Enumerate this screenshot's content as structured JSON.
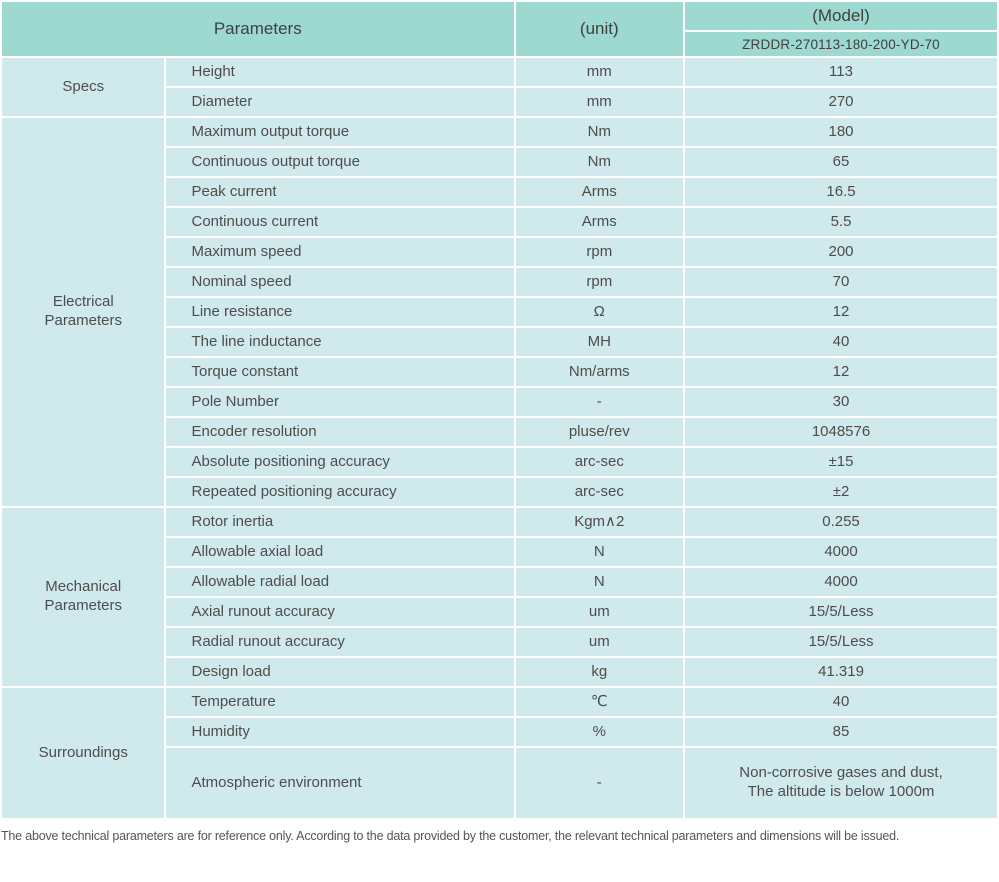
{
  "header": {
    "parameters_label": "Parameters",
    "unit_label": "(unit)",
    "model_label": "(Model)",
    "model_value": "ZRDDR-270113-180-200-YD-70"
  },
  "sections": [
    {
      "group": "Specs",
      "rows": [
        [
          "Height",
          "mm",
          "113"
        ],
        [
          "Diameter",
          "mm",
          "270"
        ]
      ]
    },
    {
      "group": "Electrical\nParameters",
      "rows": [
        [
          "Maximum output torque",
          "Nm",
          "180"
        ],
        [
          "Continuous output torque",
          "Nm",
          "65"
        ],
        [
          "Peak current",
          "Arms",
          "16.5"
        ],
        [
          "Continuous current",
          "Arms",
          "5.5"
        ],
        [
          "Maximum speed",
          "rpm",
          "200"
        ],
        [
          "Nominal speed",
          "rpm",
          "70"
        ],
        [
          "Line resistance",
          "Ω",
          "12"
        ],
        [
          "The line inductance",
          "MH",
          "40"
        ],
        [
          "Torque constant",
          "Nm/arms",
          "12"
        ],
        [
          "Pole Number",
          "-",
          "30"
        ],
        [
          "Encoder resolution",
          "pluse/rev",
          "1048576"
        ],
        [
          "Absolute positioning accuracy",
          "arc-sec",
          "±15"
        ],
        [
          "Repeated positioning accuracy",
          "arc-sec",
          "±2"
        ]
      ]
    },
    {
      "group": "Mechanical\nParameters",
      "rows": [
        [
          "Rotor inertia",
          "Kgm∧2",
          "0.255"
        ],
        [
          "Allowable axial load",
          "N",
          "4000"
        ],
        [
          "Allowable radial load",
          "N",
          "4000"
        ],
        [
          "Axial runout accuracy",
          "um",
          "15/5/Less"
        ],
        [
          "Radial runout accuracy",
          "um",
          "15/5/Less"
        ],
        [
          "Design load",
          "kg",
          "41.319"
        ]
      ]
    },
    {
      "group": "Surroundings",
      "rows": [
        [
          "Temperature",
          "℃",
          "40"
        ],
        [
          "Humidity",
          "%",
          "85"
        ],
        [
          "Atmospheric environment",
          "-",
          "Non-corrosive gases and dust,\nThe altitude is below 1000m"
        ]
      ]
    }
  ],
  "footer": {
    "note": "The above technical parameters are for reference only. According to the data provided by the customer, the relevant technical parameters and dimensions will be issued."
  },
  "colors": {
    "header_bg": "#9dd8d1",
    "cell_bg": "#cfe9ec",
    "text": "#4d4d4d"
  }
}
